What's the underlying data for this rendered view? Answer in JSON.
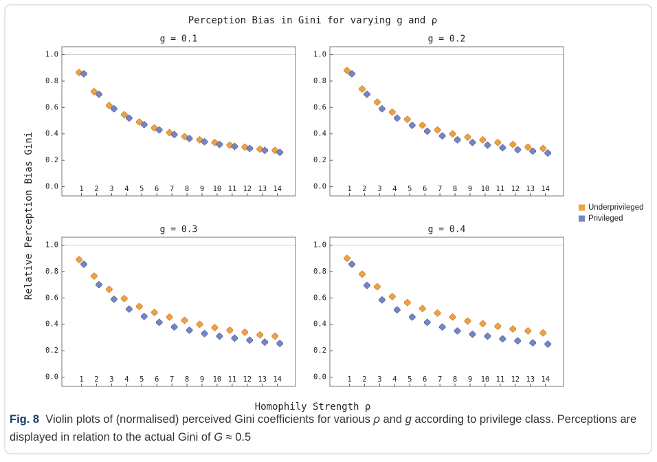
{
  "figure": {
    "title": "Perception Bias in Gini for varying g and ρ",
    "xlabel": "Homophily Strength ρ",
    "ylabel": "Relative Perception Bias Gini",
    "legend": [
      {
        "name": "Underprivileged",
        "color": "#f0a040"
      },
      {
        "name": "Privileged",
        "color": "#7585c4"
      }
    ],
    "caption": {
      "label": "Fig. 8",
      "parts": [
        {
          "text": "Violin plots of (normalised) perceived Gini coefficients for various "
        },
        {
          "text": "ρ",
          "italic": true
        },
        {
          "text": " and "
        },
        {
          "text": "g",
          "italic": true
        },
        {
          "text": " according to privilege class. Perceptions are displayed in relation to the actual Gini of "
        },
        {
          "text": "G",
          "italic": true
        },
        {
          "text": " ≈ 0.5"
        }
      ]
    }
  },
  "chart_data": [
    {
      "type": "violin",
      "title": "g = 0.1",
      "x": [
        1,
        2,
        3,
        4,
        5,
        6,
        7,
        8,
        9,
        10,
        11,
        12,
        13,
        14
      ],
      "series": [
        {
          "values": [
            0.865,
            0.72,
            0.615,
            0.545,
            0.49,
            0.445,
            0.41,
            0.38,
            0.355,
            0.335,
            0.315,
            0.3,
            0.285,
            0.275
          ]
        },
        {
          "values": [
            0.855,
            0.7,
            0.59,
            0.52,
            0.47,
            0.43,
            0.395,
            0.365,
            0.34,
            0.32,
            0.305,
            0.29,
            0.275,
            0.26
          ]
        }
      ],
      "xlim": [
        -0.3,
        15.2
      ],
      "xticks": [
        1,
        2,
        3,
        4,
        5,
        6,
        7,
        8,
        9,
        10,
        11,
        12,
        13,
        14
      ],
      "ylim": [
        -0.07,
        1.06
      ],
      "yticks": [
        {
          "value": 0,
          "label": "0.0"
        },
        {
          "value": 0.2,
          "label": "0.2"
        },
        {
          "value": 0.4,
          "label": "0.4"
        },
        {
          "value": 0.6,
          "label": "0.6"
        },
        {
          "value": 0.8,
          "label": "0.8"
        },
        {
          "value": 1,
          "label": "1.0"
        }
      ],
      "hline": 1
    },
    {
      "type": "violin",
      "title": "g = 0.2",
      "x": [
        1,
        2,
        3,
        4,
        5,
        6,
        7,
        8,
        9,
        10,
        11,
        12,
        13,
        14
      ],
      "series": [
        {
          "values": [
            0.88,
            0.74,
            0.64,
            0.565,
            0.51,
            0.465,
            0.43,
            0.4,
            0.375,
            0.355,
            0.335,
            0.32,
            0.3,
            0.29
          ]
        },
        {
          "values": [
            0.855,
            0.7,
            0.59,
            0.52,
            0.465,
            0.42,
            0.385,
            0.355,
            0.335,
            0.315,
            0.295,
            0.28,
            0.27,
            0.255
          ]
        }
      ],
      "xlim": [
        -0.3,
        15.2
      ],
      "xticks": [
        1,
        2,
        3,
        4,
        5,
        6,
        7,
        8,
        9,
        10,
        11,
        12,
        13,
        14
      ],
      "ylim": [
        -0.07,
        1.06
      ],
      "yticks": [
        {
          "value": 0,
          "label": "0.0"
        },
        {
          "value": 0.2,
          "label": "0.2"
        },
        {
          "value": 0.4,
          "label": "0.4"
        },
        {
          "value": 0.6,
          "label": "0.6"
        },
        {
          "value": 0.8,
          "label": "0.8"
        },
        {
          "value": 1,
          "label": "1.0"
        }
      ],
      "hline": 1
    },
    {
      "type": "violin",
      "title": "g = 0.3",
      "x": [
        1,
        2,
        3,
        4,
        5,
        6,
        7,
        8,
        9,
        10,
        11,
        12,
        13,
        14
      ],
      "series": [
        {
          "values": [
            0.89,
            0.765,
            0.665,
            0.595,
            0.535,
            0.49,
            0.455,
            0.43,
            0.4,
            0.375,
            0.355,
            0.34,
            0.32,
            0.31
          ]
        },
        {
          "values": [
            0.855,
            0.7,
            0.59,
            0.515,
            0.46,
            0.415,
            0.38,
            0.355,
            0.33,
            0.31,
            0.295,
            0.28,
            0.265,
            0.255
          ]
        }
      ],
      "xlim": [
        -0.3,
        15.2
      ],
      "xticks": [
        1,
        2,
        3,
        4,
        5,
        6,
        7,
        8,
        9,
        10,
        11,
        12,
        13,
        14
      ],
      "ylim": [
        -0.07,
        1.06
      ],
      "yticks": [
        {
          "value": 0,
          "label": "0.0"
        },
        {
          "value": 0.2,
          "label": "0.2"
        },
        {
          "value": 0.4,
          "label": "0.4"
        },
        {
          "value": 0.6,
          "label": "0.6"
        },
        {
          "value": 0.8,
          "label": "0.8"
        },
        {
          "value": 1,
          "label": "1.0"
        }
      ],
      "hline": 1
    },
    {
      "type": "violin",
      "title": "g = 0.4",
      "x": [
        1,
        2,
        3,
        4,
        5,
        6,
        7,
        8,
        9,
        10,
        11,
        12,
        13,
        14
      ],
      "series": [
        {
          "values": [
            0.9,
            0.78,
            0.685,
            0.61,
            0.565,
            0.52,
            0.485,
            0.455,
            0.425,
            0.405,
            0.385,
            0.365,
            0.35,
            0.335
          ]
        },
        {
          "values": [
            0.855,
            0.695,
            0.585,
            0.51,
            0.455,
            0.415,
            0.38,
            0.35,
            0.325,
            0.31,
            0.29,
            0.275,
            0.26,
            0.25
          ]
        }
      ],
      "xlim": [
        -0.3,
        15.2
      ],
      "xticks": [
        1,
        2,
        3,
        4,
        5,
        6,
        7,
        8,
        9,
        10,
        11,
        12,
        13,
        14
      ],
      "ylim": [
        -0.07,
        1.06
      ],
      "yticks": [
        {
          "value": 0,
          "label": "0.0"
        },
        {
          "value": 0.2,
          "label": "0.2"
        },
        {
          "value": 0.4,
          "label": "0.4"
        },
        {
          "value": 0.6,
          "label": "0.6"
        },
        {
          "value": 0.8,
          "label": "0.8"
        },
        {
          "value": 1,
          "label": "1.0"
        }
      ],
      "hline": 1
    }
  ]
}
